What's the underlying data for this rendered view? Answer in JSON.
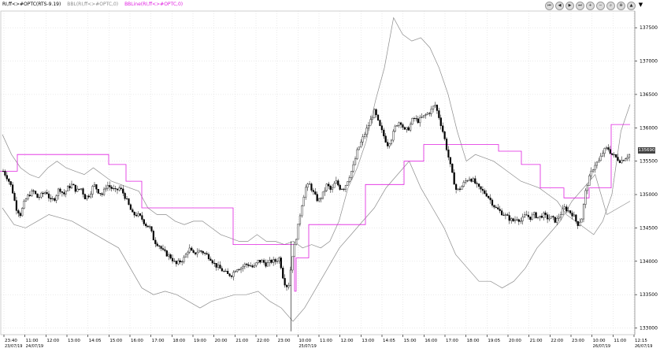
{
  "legend": {
    "instrument": "RI,ff<>#OPTC(RTS-9.19)",
    "bands": "BBL(RI,ff<>#OPTC,0)",
    "bbline": "BBLine(RI,ff<>#OPTC,0)"
  },
  "navigation": {
    "buttons": [
      {
        "name": "first-page-button",
        "glyph": "⏮"
      },
      {
        "name": "prev-page-button",
        "glyph": "◀"
      },
      {
        "name": "play-button",
        "glyph": "▶"
      },
      {
        "name": "last-page-button",
        "glyph": "⏭"
      },
      {
        "name": "zoom-in-button",
        "glyph": "+"
      },
      {
        "name": "zoom-out-button",
        "glyph": "−"
      },
      {
        "name": "search-button",
        "glyph": "⌕"
      },
      {
        "name": "zoom-fit-button",
        "glyph": "⊕"
      },
      {
        "name": "scroll-up-button",
        "glyph": "▲"
      }
    ],
    "pin": "📌"
  },
  "price_tag": "135690",
  "colors": {
    "candle": "#000000",
    "band": "#8c8c8c",
    "midline": "#e020e0",
    "grid": "#d6d6d6",
    "axis": "#000000"
  },
  "chart_data": {
    "type": "candlestick",
    "y_ticks": [
      133000,
      133500,
      134000,
      134500,
      135000,
      135500,
      136000,
      136500,
      137000,
      137500
    ],
    "ylim": [
      132900,
      137750
    ],
    "x_ticks": [
      {
        "label": "23:40",
        "date": "23/07/19"
      },
      {
        "label": "11:00",
        "date": "24/07/19"
      },
      {
        "label": "12:00"
      },
      {
        "label": "13:00"
      },
      {
        "label": "14:05"
      },
      {
        "label": "15:00"
      },
      {
        "label": "16:00"
      },
      {
        "label": "17:00"
      },
      {
        "label": "18:00"
      },
      {
        "label": "19:00"
      },
      {
        "label": "20:00"
      },
      {
        "label": "21:00"
      },
      {
        "label": "22:00"
      },
      {
        "label": "23:00"
      },
      {
        "label": "10:00",
        "date": "25/07/19"
      },
      {
        "label": "11:00"
      },
      {
        "label": "12:00"
      },
      {
        "label": "13:00"
      },
      {
        "label": "14:05"
      },
      {
        "label": "15:00"
      },
      {
        "label": "16:00"
      },
      {
        "label": "17:00"
      },
      {
        "label": "18:00"
      },
      {
        "label": "19:05"
      },
      {
        "label": "20:00"
      },
      {
        "label": "21:00"
      },
      {
        "label": "22:00"
      },
      {
        "label": "23:00"
      },
      {
        "label": "10:00",
        "date": "26/07/19"
      },
      {
        "label": "11:00"
      },
      {
        "label": "12:15",
        "date": "26/07/19"
      }
    ],
    "close_path": [
      135350,
      135250,
      135100,
      134800,
      134700,
      134900,
      135000,
      135050,
      134950,
      135000,
      135050,
      134900,
      134950,
      135100,
      135000,
      135100,
      135150,
      135050,
      135100,
      134950,
      135000,
      135150,
      135050,
      135000,
      135150,
      135100,
      135050,
      135100,
      135000,
      134850,
      134700,
      134700,
      134650,
      134550,
      134500,
      134300,
      134250,
      134150,
      134100,
      134050,
      133950,
      134000,
      134050,
      134200,
      134100,
      134150,
      134150,
      134100,
      134050,
      133950,
      133900,
      133850,
      133800,
      133800,
      133900,
      133900,
      133950,
      133950,
      133900,
      134000,
      134000,
      133950,
      134000,
      134000,
      134050,
      133700,
      133600,
      134100,
      134400,
      134800,
      135100,
      135150,
      135000,
      134900,
      135000,
      135150,
      135050,
      135200,
      135100,
      135100,
      135250,
      135400,
      135650,
      135800,
      135950,
      136100,
      136250,
      136050,
      135900,
      135750,
      135850,
      136050,
      136100,
      135950,
      136000,
      136150,
      136100,
      136150,
      136200,
      136250,
      136350,
      136150,
      135900,
      135600,
      135300,
      135050,
      135100,
      135200,
      135250,
      135200,
      135100,
      135050,
      135000,
      134900,
      134800,
      134750,
      134700,
      134650,
      134600,
      134650,
      134600,
      134700,
      134650,
      134700,
      134650,
      134700,
      134650,
      134650,
      134600,
      134700,
      134800,
      134750,
      134700,
      134550,
      134650,
      135100,
      135300,
      135450,
      135500,
      135650,
      135700,
      135600,
      135550,
      135500,
      135550,
      135600
    ],
    "close_overlay": [
      135350,
      135200,
      134900,
      134700,
      134900,
      135000,
      134900,
      135050,
      135150,
      135050,
      134950,
      135100,
      135000,
      135150,
      134850,
      134700,
      134600,
      134550,
      134400,
      134200,
      134050,
      134000,
      134150,
      134000,
      133950,
      133900,
      133850,
      133950,
      133900,
      133950,
      134000,
      133950,
      134050,
      133650,
      133550,
      134400,
      134900,
      135100,
      135000,
      135100,
      135200,
      135650,
      136050,
      136200,
      135900,
      135850,
      136050,
      135950,
      136150,
      136050,
      136300,
      135400,
      135100,
      135150,
      135050,
      134850,
      134750,
      134700,
      134650,
      134650,
      134700,
      134650,
      134650,
      134600,
      134750,
      134600,
      134800,
      135300,
      135500,
      135700,
      135550,
      135550
    ],
    "upper_band": [
      135900,
      135600,
      135400,
      135300,
      135250,
      135400,
      135500,
      135400,
      135350,
      135300,
      135400,
      135300,
      135200,
      135150,
      135100,
      135050,
      134800,
      134700,
      134700,
      134600,
      134550,
      134600,
      134600,
      134500,
      134400,
      134350,
      134300,
      134300,
      134400,
      134300,
      134300,
      134250,
      134300,
      134200,
      134250,
      134200,
      134300,
      134600,
      135100,
      135400,
      135800,
      136400,
      136900,
      137650,
      137400,
      137300,
      137350,
      137200,
      136900,
      136500,
      135950,
      135500,
      135600,
      135550,
      135500,
      135400,
      135300,
      135200,
      135150,
      135100,
      135000,
      134900,
      134700,
      134600,
      134500,
      134400,
      134600,
      135000,
      135950,
      136350
    ],
    "lower_band": [
      134800,
      134550,
      134500,
      134600,
      134700,
      134650,
      134600,
      134500,
      134400,
      134300,
      134200,
      133900,
      133600,
      133500,
      133550,
      133500,
      133400,
      133300,
      133400,
      133450,
      133500,
      133500,
      133550,
      133400,
      133300,
      133100,
      133300,
      133600,
      133900,
      134200,
      134400,
      134600,
      134800,
      135100,
      135300,
      135500,
      135100,
      134800,
      134500,
      134100,
      133900,
      133700,
      133700,
      133600,
      133700,
      133900,
      134200,
      134400,
      134600,
      134900,
      135100,
      135300,
      134700,
      134800,
      134900
    ],
    "midline_steps": [
      [
        0,
        135350
      ],
      [
        22,
        135350
      ],
      [
        22,
        135600
      ],
      [
        138,
        135600
      ],
      [
        138,
        135450
      ],
      [
        160,
        135450
      ],
      [
        160,
        135200
      ],
      [
        180,
        135200
      ],
      [
        180,
        134800
      ],
      [
        296,
        134800
      ],
      [
        296,
        134250
      ],
      [
        374,
        134250
      ],
      [
        374,
        133550
      ],
      [
        376,
        133550
      ],
      [
        376,
        134050
      ],
      [
        392,
        134050
      ],
      [
        392,
        134550
      ],
      [
        464,
        134550
      ],
      [
        464,
        135150
      ],
      [
        513,
        135150
      ],
      [
        513,
        135500
      ],
      [
        538,
        135500
      ],
      [
        538,
        135750
      ],
      [
        633,
        135750
      ],
      [
        633,
        135650
      ],
      [
        662,
        135650
      ],
      [
        662,
        135450
      ],
      [
        686,
        135450
      ],
      [
        686,
        135100
      ],
      [
        716,
        135100
      ],
      [
        716,
        134950
      ],
      [
        748,
        134950
      ],
      [
        748,
        135100
      ],
      [
        776,
        135100
      ],
      [
        776,
        136050
      ],
      [
        800,
        136050
      ]
    ]
  }
}
